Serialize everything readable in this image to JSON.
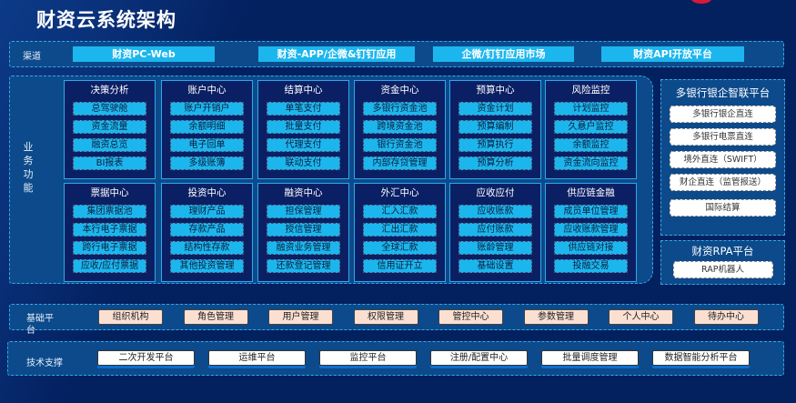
{
  "title": "财资云系统架构",
  "colors": {
    "background": "#03205f",
    "band": "#0c4a8b",
    "item": "#1cb6ee",
    "base_item": "#fbe0d2",
    "logo": "#d8193a"
  },
  "channel": {
    "label": "渠道",
    "items": [
      "财资PC-Web",
      "财资-APP/企微&钉钉应用",
      "企微/钉钉应用市场",
      "财资API开放平台"
    ]
  },
  "business": {
    "label": "业务功能",
    "modules": [
      {
        "title": "决策分析",
        "items": [
          "总驾驶舱",
          "资金流量",
          "融资总览",
          "BI报表"
        ]
      },
      {
        "title": "账户中心",
        "items": [
          "账户开销户",
          "余额明细",
          "电子回单",
          "多级账簿"
        ]
      },
      {
        "title": "结算中心",
        "items": [
          "单笔支付",
          "批量支付",
          "代理支付",
          "联动支付"
        ]
      },
      {
        "title": "资金中心",
        "items": [
          "多银行资金池",
          "跨境资金池",
          "银行资金池",
          "内部存贷管理"
        ]
      },
      {
        "title": "预算中心",
        "items": [
          "资金计划",
          "预算编制",
          "预算执行",
          "预算分析"
        ]
      },
      {
        "title": "风险监控",
        "items": [
          "计划监控",
          "久悬户监控",
          "余额监控",
          "资金流向监控"
        ]
      },
      {
        "title": "票据中心",
        "items": [
          "集团票据池",
          "本行电子票据",
          "跨行电子票据",
          "应收/应付票据"
        ]
      },
      {
        "title": "投资中心",
        "items": [
          "理财产品",
          "存款产品",
          "结构性存款",
          "其他投资管理"
        ]
      },
      {
        "title": "融资中心",
        "items": [
          "担保管理",
          "授信管理",
          "融资业务管理",
          "还款登记管理"
        ]
      },
      {
        "title": "外汇中心",
        "items": [
          "汇入汇款",
          "汇出汇款",
          "全球汇款",
          "信用证开立"
        ]
      },
      {
        "title": "应收应付",
        "items": [
          "应收账款",
          "应付账款",
          "账龄管理",
          "基础设置"
        ]
      },
      {
        "title": "供应链金融",
        "items": [
          "成员单位管理",
          "应收账款管理",
          "供应链对接",
          "投融交易"
        ]
      }
    ]
  },
  "bank_platform": {
    "title": "多银行银企智联平台",
    "items": [
      "多银行银企直连",
      "多银行电票直连",
      "境外直连（SWIFT）",
      "财企直连（监管报送）",
      "国际结算"
    ]
  },
  "rpa_platform": {
    "title": "财资RPA平台",
    "items": [
      "RAP机器人"
    ]
  },
  "base_platform": {
    "label": "基础平台",
    "items": [
      "组织机构",
      "角色管理",
      "用户管理",
      "权限管理",
      "管控中心",
      "参数管理",
      "个人中心",
      "待办中心"
    ]
  },
  "tech_support": {
    "label": "技术支撑",
    "items": [
      "二次开发平台",
      "运维平台",
      "监控平台",
      "注册/配置中心",
      "批量调度管理",
      "数据智能分析平台"
    ]
  }
}
